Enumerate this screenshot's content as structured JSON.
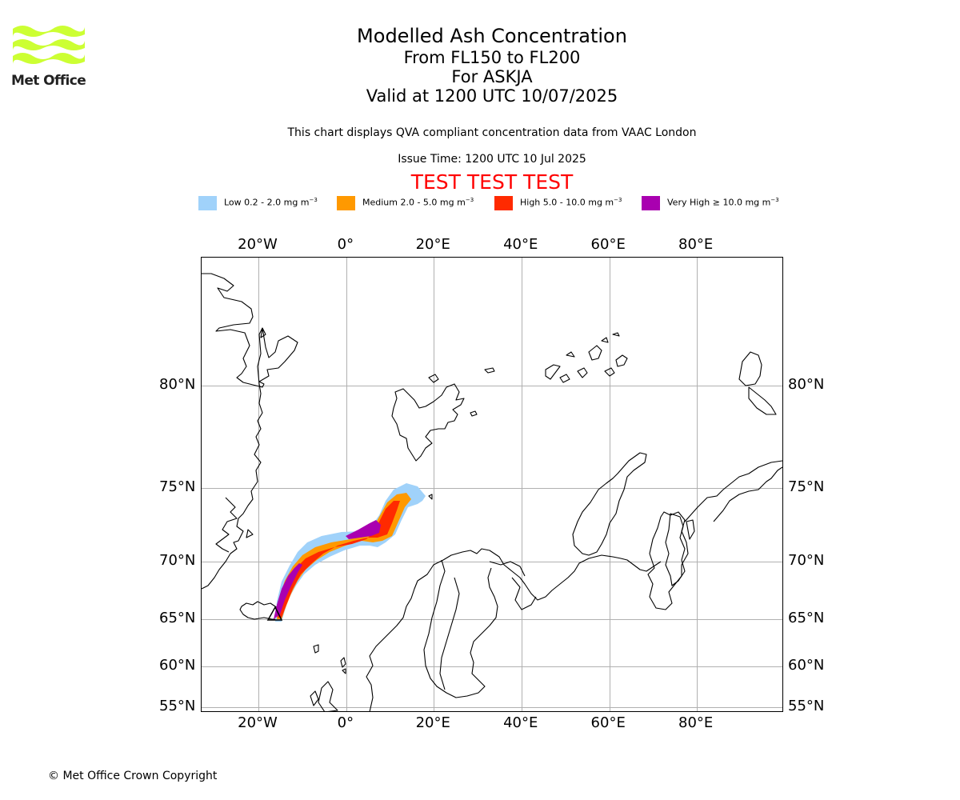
{
  "logo": {
    "name": "Met Office",
    "color": "#ccff33"
  },
  "header": {
    "title": "Modelled Ash Concentration",
    "levels": "From FL150 to FL200",
    "volcano": "For ASKJA",
    "valid": "Valid at 1200 UTC 10/07/2025",
    "compliance": "This chart displays QVA compliant concentration data from VAAC London",
    "issue_time": "Issue Time: 1200 UTC 10 Jul 2025",
    "test_banner": "TEST TEST TEST"
  },
  "legend": [
    {
      "label": "Low 0.2 - 2.0 mg m",
      "exp": "−3",
      "color": "#a0d2fa"
    },
    {
      "label": "Medium 2.0 - 5.0 mg m",
      "exp": "−3",
      "color": "#ff9900"
    },
    {
      "label": "High 5.0 - 10.0 mg m",
      "exp": "−3",
      "color": "#ff2a00"
    },
    {
      "label": "Very High ≥ 10.0 mg m",
      "exp": "−3",
      "color": "#a900b0"
    }
  ],
  "map": {
    "lon_range": [
      -33,
      100
    ],
    "lat_range": [
      54.5,
      86
    ],
    "lon_ticks": [
      {
        "value": -20,
        "label": "20°W"
      },
      {
        "value": 0,
        "label": "0°"
      },
      {
        "value": 20,
        "label": "20°E"
      },
      {
        "value": 40,
        "label": "40°E"
      },
      {
        "value": 60,
        "label": "60°E"
      },
      {
        "value": 80,
        "label": "80°E"
      }
    ],
    "lat_ticks": [
      {
        "value": 80,
        "label": "80°N"
      },
      {
        "value": 75,
        "label": "75°N"
      },
      {
        "value": 70,
        "label": "70°N"
      },
      {
        "value": 65,
        "label": "65°N"
      },
      {
        "value": 60,
        "label": "60°N"
      },
      {
        "value": 55,
        "label": "55°N"
      }
    ],
    "volcano_marker": "triangle",
    "gridlines": true
  },
  "footer": {
    "copyright": "© Met Office Crown Copyright"
  }
}
